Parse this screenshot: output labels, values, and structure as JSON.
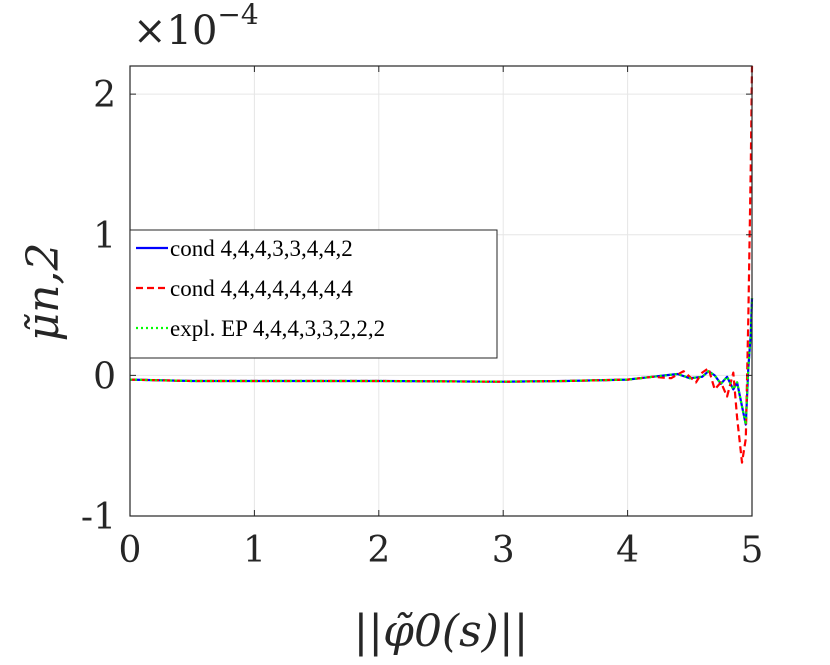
{
  "chart_data": {
    "type": "line",
    "title": "",
    "xlabel": "||φ̃0(s)||",
    "ylabel": "μ̃n,2",
    "xlim": [
      0,
      5
    ],
    "ylim": [
      -1,
      2.2
    ],
    "y_exponent": "×10^−4",
    "y_exponent_base": "×10",
    "y_exponent_power": "−4",
    "xticks": [
      0,
      1,
      2,
      3,
      4,
      5
    ],
    "xtick_labels": [
      "0",
      "1",
      "2",
      "3",
      "4",
      "5"
    ],
    "yticks": [
      -1,
      0,
      1,
      2
    ],
    "ytick_labels": [
      "-1",
      "0",
      "1",
      "2"
    ],
    "grid": true,
    "legend_position": "middle-left",
    "series": [
      {
        "name": "cond 4,4,4,3,3,4,4,2",
        "color": "#0000ff",
        "style": "solid",
        "x": [
          0,
          0.5,
          1,
          2,
          3,
          3.5,
          4,
          4.2,
          4.3,
          4.4,
          4.5,
          4.6,
          4.65,
          4.7,
          4.75,
          4.8,
          4.85,
          4.88,
          4.92,
          4.95,
          4.97,
          4.99,
          5.0
        ],
        "y": [
          -0.03,
          -0.04,
          -0.04,
          -0.04,
          -0.045,
          -0.04,
          -0.03,
          -0.01,
          0.0,
          0.01,
          -0.02,
          -0.01,
          0.03,
          0.0,
          -0.06,
          -0.01,
          -0.1,
          -0.05,
          -0.22,
          -0.35,
          0.05,
          0.3,
          0.55
        ]
      },
      {
        "name": "cond 4,4,4,4,4,4,4,4",
        "color": "#ff0000",
        "style": "dashed",
        "x": [
          0,
          0.5,
          1,
          2,
          3,
          3.5,
          4,
          4.2,
          4.35,
          4.45,
          4.5,
          4.55,
          4.6,
          4.65,
          4.7,
          4.75,
          4.8,
          4.85,
          4.88,
          4.92,
          4.95,
          4.97,
          4.99,
          5.0
        ],
        "y": [
          -0.03,
          -0.04,
          -0.04,
          -0.04,
          -0.045,
          -0.04,
          -0.03,
          -0.01,
          -0.02,
          0.03,
          -0.01,
          -0.05,
          0.02,
          0.05,
          -0.1,
          -0.05,
          -0.15,
          0.02,
          -0.3,
          -0.62,
          -0.45,
          0.4,
          1.5,
          2.2
        ]
      },
      {
        "name": "expl. EP 4,4,4,3,3,2,2,2",
        "color": "#00ff00",
        "style": "dotted",
        "x": [
          0,
          0.5,
          1,
          2,
          3,
          3.5,
          4,
          4.2,
          4.3,
          4.4,
          4.5,
          4.6,
          4.65,
          4.7,
          4.75,
          4.8,
          4.85,
          4.88,
          4.92,
          4.95,
          4.97,
          4.99,
          5.0
        ],
        "y": [
          -0.03,
          -0.04,
          -0.04,
          -0.04,
          -0.045,
          -0.04,
          -0.03,
          -0.01,
          0.0,
          0.01,
          -0.02,
          -0.01,
          0.03,
          0.0,
          -0.06,
          -0.01,
          -0.1,
          -0.05,
          -0.22,
          -0.35,
          0.05,
          0.3,
          0.55
        ]
      }
    ]
  }
}
